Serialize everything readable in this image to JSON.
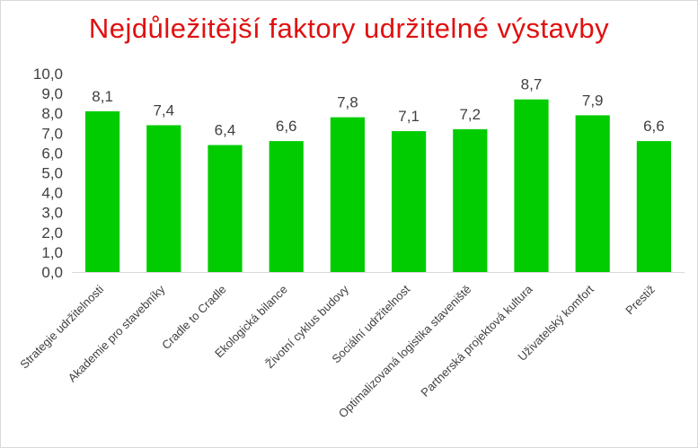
{
  "chart_data": {
    "type": "bar",
    "title": "Nejdůležitější faktory udržitelné výstavby",
    "xlabel": "",
    "ylabel": "",
    "ylim": [
      0,
      10
    ],
    "yticks": [
      "0,0",
      "1,0",
      "2,0",
      "3,0",
      "4,0",
      "5,0",
      "6,0",
      "7,0",
      "8,0",
      "9,0",
      "10,0"
    ],
    "grid": false,
    "legend": "none",
    "bar_color": "#00cc00",
    "title_color": "#e01010",
    "categories": [
      "Strategie udržitelnosti",
      "Akademie pro stavebníky",
      "Cradle to Cradle",
      "Ekologická bilance",
      "Životní cyklus budovy",
      "Sociální udržitelnost",
      "Optimalizovaná logistika staveniště",
      "Partnerská projektová kultura",
      "Uživatelský komfort",
      "Prestiž"
    ],
    "values": [
      8.1,
      7.4,
      6.4,
      6.6,
      7.8,
      7.1,
      7.2,
      8.7,
      7.9,
      6.6
    ],
    "data_labels": [
      "8,1",
      "7,4",
      "6,4",
      "6,6",
      "7,8",
      "7,1",
      "7,2",
      "8,7",
      "7,9",
      "6,6"
    ]
  }
}
